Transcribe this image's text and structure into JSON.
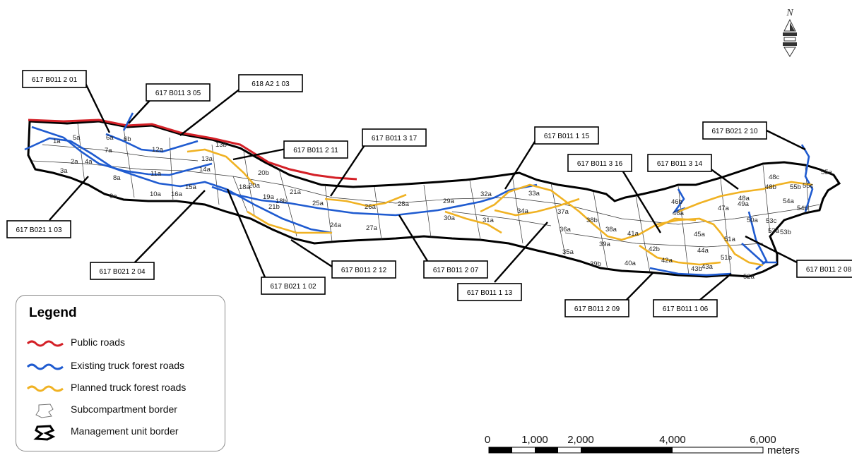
{
  "north_label": "N",
  "legend": {
    "title": "Legend",
    "items": [
      {
        "label": "Public roads",
        "color": "#d42027",
        "style": "line"
      },
      {
        "label": "Existing truck forest roads",
        "color": "#1f5bd0",
        "style": "line"
      },
      {
        "label": "Planned truck forest roads",
        "color": "#f0b223",
        "style": "line"
      },
      {
        "label": "Subcompartment border",
        "color": "#777777",
        "style": "polygon-thin"
      },
      {
        "label": "Management unit border",
        "color": "#000000",
        "style": "polygon-thick"
      }
    ]
  },
  "road_tags": [
    "617 B011 2 01",
    "617 B011 3 05",
    "618 A2 1 03",
    "617 B011 2 11",
    "617 B011 3 17",
    "617 B011 1 15",
    "617 B021 2 10",
    "617 B011 3 16",
    "617 B011 3 14",
    "617 B021 1 03",
    "617 B021 2 04",
    "617 B021 1 02",
    "617 B011 2 12",
    "617 B011 2 07",
    "617 B011 1 13",
    "617 B011 2 09",
    "617 B011 1 06",
    "617 B011 2 08"
  ],
  "subcompartments": [
    "1a",
    "2a",
    "3a",
    "4a",
    "5a",
    "6a",
    "6b",
    "7a",
    "8a",
    "9a",
    "10a",
    "11a",
    "12a",
    "13a",
    "13b",
    "14a",
    "15a",
    "16a",
    "18a",
    "18b",
    "19a",
    "20a",
    "20b",
    "21a",
    "21b",
    "24a",
    "25a",
    "26a",
    "27a",
    "28a",
    "29a",
    "30a",
    "31a",
    "32a",
    "33a",
    "34a",
    "35a",
    "36a",
    "37a",
    "38a",
    "38b",
    "39a",
    "39b",
    "40a",
    "41a",
    "42a",
    "42b",
    "43a",
    "43b",
    "44a",
    "45a",
    "46a",
    "46b",
    "47a",
    "48a",
    "48b",
    "48c",
    "49a",
    "50a",
    "51a",
    "51b",
    "52a",
    "53a",
    "53b",
    "53c",
    "54a",
    "54b",
    "55a",
    "55b",
    "55c"
  ],
  "scale_bar": {
    "labels": [
      "0",
      "1,000",
      "2,000",
      "4,000",
      "6,000"
    ],
    "unit": "meters"
  }
}
